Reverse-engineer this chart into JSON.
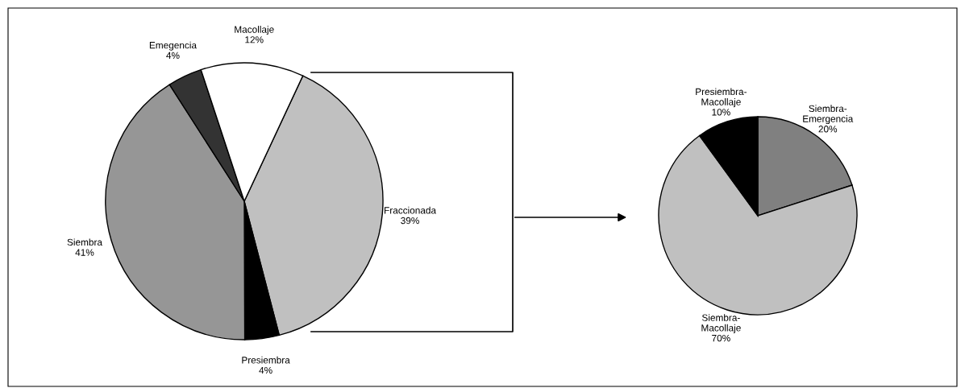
{
  "chart_data": [
    {
      "type": "pie",
      "categories": [
        "Fraccionada",
        "Presiembra",
        "Siembra",
        "Emegencia",
        "Macollaje"
      ],
      "values": [
        39,
        4,
        41,
        4,
        12
      ],
      "colors": [
        "#c0c0c0",
        "#000000",
        "#969696",
        "#333333",
        "#ffffff"
      ],
      "value_labels": [
        "39%",
        "4%",
        "41%",
        "4%",
        "12%"
      ],
      "legend": false
    },
    {
      "type": "pie",
      "categories": [
        "Siembra-Emergencia",
        "Siembra-Macollaje",
        "Presiembra-Macollaje"
      ],
      "values": [
        20,
        70,
        10
      ],
      "colors": [
        "#808080",
        "#c0c0c0",
        "#000000"
      ],
      "value_labels": [
        "20%",
        "70%",
        "10%"
      ],
      "legend": false
    }
  ]
}
